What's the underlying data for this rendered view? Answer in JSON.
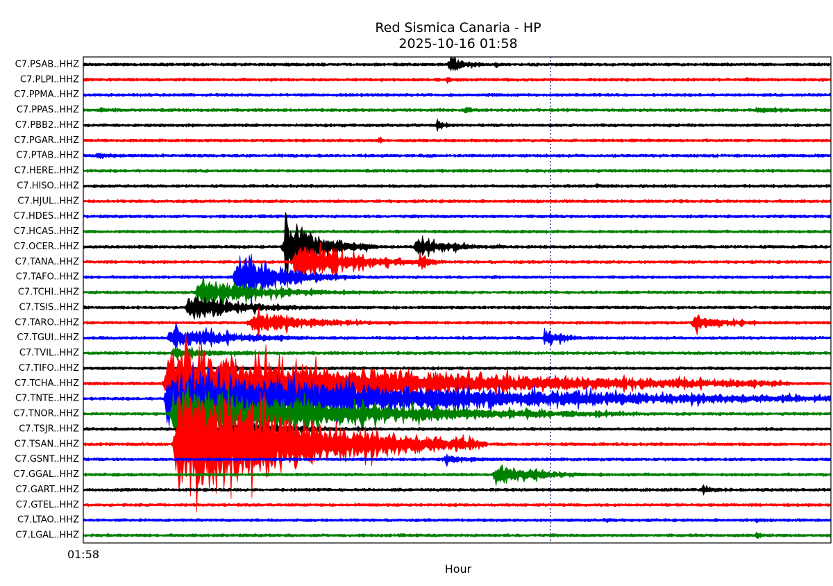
{
  "chart_data": {
    "type": "seismogram",
    "title": "Red Sismica Canaria - HP",
    "subtitle": "2025-10-16 01:58",
    "xlabel": "Hour",
    "xlim": [
      0,
      60
    ],
    "xticks": [
      {
        "value": 0,
        "label": "01:58"
      }
    ],
    "vline": 37.5,
    "stations": [
      {
        "name": "C7.PSAB..HHZ",
        "color": "#000000",
        "bursts": [
          {
            "t": 29.4,
            "amp": 1.0,
            "dur": 1.5
          },
          {
            "t": 33.1,
            "amp": 0.4,
            "dur": 0.5
          }
        ]
      },
      {
        "name": "C7.PLPI..HHZ",
        "color": "#ff0000",
        "bursts": [
          {
            "t": 29.2,
            "amp": 0.5,
            "dur": 0.8
          },
          {
            "t": 53.2,
            "amp": 0.3,
            "dur": 2
          }
        ]
      },
      {
        "name": "C7.PPMA..HHZ",
        "color": "#0000ff",
        "bursts": [
          {
            "t": 31.6,
            "amp": 0.2,
            "dur": 0.6
          }
        ]
      },
      {
        "name": "C7.PPAS..HHZ",
        "color": "#008000",
        "bursts": [
          {
            "t": 1.4,
            "amp": 0.3,
            "dur": 2
          },
          {
            "t": 30.6,
            "amp": 0.5,
            "dur": 1
          },
          {
            "t": 54,
            "amp": 0.4,
            "dur": 3
          }
        ]
      },
      {
        "name": "C7.PBB2..HHZ",
        "color": "#000000",
        "bursts": [
          {
            "t": 28.4,
            "amp": 0.6,
            "dur": 1
          }
        ]
      },
      {
        "name": "C7.PGAR..HHZ",
        "color": "#ff0000",
        "bursts": [
          {
            "t": 23.7,
            "amp": 0.4,
            "dur": 0.6
          }
        ]
      },
      {
        "name": "C7.PTAB..HHZ",
        "color": "#0000ff",
        "bursts": [
          {
            "t": 1.1,
            "amp": 0.4,
            "dur": 2
          },
          {
            "t": 59,
            "amp": 0.3,
            "dur": 1
          }
        ]
      },
      {
        "name": "C7.HERE..HHZ",
        "color": "#008000",
        "bursts": [
          {
            "t": 41,
            "amp": 0.2,
            "dur": 0.5
          }
        ]
      },
      {
        "name": "C7.HISO..HHZ",
        "color": "#000000",
        "bursts": [
          {
            "t": 41.2,
            "amp": 0.3,
            "dur": 2
          }
        ]
      },
      {
        "name": "C7.HJUL..HHZ",
        "color": "#ff0000",
        "bursts": []
      },
      {
        "name": "C7.HDES..HHZ",
        "color": "#0000ff",
        "bursts": []
      },
      {
        "name": "C7.HCAS..HHZ",
        "color": "#008000",
        "bursts": []
      },
      {
        "name": "C7.OCER..HHZ",
        "color": "#000000",
        "bursts": [
          {
            "t": 16.2,
            "amp": 3.5,
            "dur": 3
          },
          {
            "t": 26.7,
            "amp": 1,
            "dur": 4
          }
        ]
      },
      {
        "name": "C7.TANA..HHZ",
        "color": "#ff0000",
        "bursts": [
          {
            "t": 17,
            "amp": 2,
            "dur": 5
          },
          {
            "t": 27,
            "amp": 1,
            "dur": 1
          }
        ]
      },
      {
        "name": "C7.TAFO..HHZ",
        "color": "#0000ff",
        "bursts": [
          {
            "t": 12.3,
            "amp": 2.7,
            "dur": 4
          }
        ]
      },
      {
        "name": "C7.TCHI..HHZ",
        "color": "#008000",
        "bursts": [
          {
            "t": 9.2,
            "amp": 1.5,
            "dur": 6
          }
        ]
      },
      {
        "name": "C7.TSIS..HHZ",
        "color": "#000000",
        "bursts": [
          {
            "t": 8.4,
            "amp": 1.5,
            "dur": 5
          },
          {
            "t": 59.6,
            "amp": 0.3,
            "dur": 1
          }
        ]
      },
      {
        "name": "C7.TARO..HHZ",
        "color": "#ff0000",
        "bursts": [
          {
            "t": 13.4,
            "amp": 1.2,
            "dur": 6
          },
          {
            "t": 49,
            "amp": 1,
            "dur": 3
          }
        ]
      },
      {
        "name": "C7.TGUI..HHZ",
        "color": "#0000ff",
        "bursts": [
          {
            "t": 7,
            "amp": 1.2,
            "dur": 6
          },
          {
            "t": 37,
            "amp": 1,
            "dur": 2
          }
        ]
      },
      {
        "name": "C7.TVIL..HHZ",
        "color": "#008000",
        "bursts": [
          {
            "t": 7.2,
            "amp": 0.6,
            "dur": 5
          }
        ]
      },
      {
        "name": "C7.TIFO..HHZ",
        "color": "#000000",
        "bursts": [
          {
            "t": 11.4,
            "amp": 0.3,
            "dur": 5
          }
        ]
      },
      {
        "name": "C7.TCHA..HHZ",
        "color": "#ff0000",
        "bursts": [
          {
            "t": 6.7,
            "amp": 4,
            "dur": 20
          }
        ]
      },
      {
        "name": "C7.TNTE..HHZ",
        "color": "#0000ff",
        "bursts": [
          {
            "t": 6.7,
            "amp": 3,
            "dur": 25
          }
        ]
      },
      {
        "name": "C7.TNOR..HHZ",
        "color": "#008000",
        "bursts": [
          {
            "t": 7.2,
            "amp": 3,
            "dur": 15
          }
        ]
      },
      {
        "name": "C7.TSJR..HHZ",
        "color": "#000000",
        "bursts": [
          {
            "t": 11.1,
            "amp": 0.8,
            "dur": 8
          }
        ]
      },
      {
        "name": "C7.TSAN..HHZ",
        "color": "#ff0000",
        "bursts": [
          {
            "t": 7.5,
            "amp": 7,
            "dur": 10
          }
        ]
      },
      {
        "name": "C7.GSNT..HHZ",
        "color": "#0000ff",
        "bursts": [
          {
            "t": 29,
            "amp": 0.5,
            "dur": 4
          }
        ]
      },
      {
        "name": "C7.GGAL..HHZ",
        "color": "#008000",
        "bursts": [
          {
            "t": 33.1,
            "amp": 1.3,
            "dur": 4
          }
        ]
      },
      {
        "name": "C7.GART..HHZ",
        "color": "#000000",
        "bursts": [
          {
            "t": 49.6,
            "amp": 0.4,
            "dur": 2
          }
        ]
      },
      {
        "name": "C7.GTEL..HHZ",
        "color": "#ff0000",
        "bursts": []
      },
      {
        "name": "C7.LTAO..HHZ",
        "color": "#0000ff",
        "bursts": [
          {
            "t": 41.8,
            "amp": 0.3,
            "dur": 1
          },
          {
            "t": 54,
            "amp": 0.3,
            "dur": 1
          }
        ]
      },
      {
        "name": "C7.LGAL..HHZ",
        "color": "#008000",
        "bursts": [
          {
            "t": 54,
            "amp": 0.4,
            "dur": 1
          }
        ]
      }
    ]
  }
}
